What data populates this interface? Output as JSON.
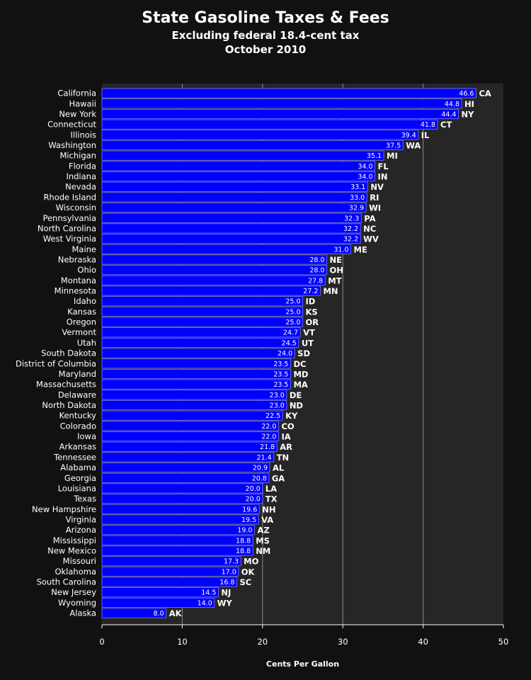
{
  "chart_data": {
    "type": "bar",
    "orientation": "horizontal",
    "title": "State Gasoline Taxes & Fees",
    "subtitles": [
      "Excluding federal 18.4-cent tax",
      "October 2010"
    ],
    "xlabel": "Cents Per Gallon",
    "ylabel": "",
    "xlim": [
      0,
      50
    ],
    "xticks": [
      "0",
      "10",
      "20",
      "30",
      "40",
      "50"
    ],
    "grid": "vertical",
    "colors": {
      "bar": "#0000ff",
      "bar_edge": "#7878ff",
      "plot_bg": "#262626",
      "page_bg": "#111111",
      "grid": "#8a8a8a"
    },
    "categories": [
      "California",
      "Hawaii",
      "New York",
      "Connecticut",
      "Illinois",
      "Washington",
      "Michigan",
      "Florida",
      "Indiana",
      "Nevada",
      "Rhode Island",
      "Wisconsin",
      "Pennsylvania",
      "North Carolina",
      "West Virginia",
      "Maine",
      "Nebraska",
      "Ohio",
      "Montana",
      "Minnesota",
      "Idaho",
      "Kansas",
      "Oregon",
      "Vermont",
      "Utah",
      "South Dakota",
      "District of Columbia",
      "Maryland",
      "Massachusetts",
      "Delaware",
      "North Dakota",
      "Kentucky",
      "Colorado",
      "Iowa",
      "Arkansas",
      "Tennessee",
      "Alabama",
      "Georgia",
      "Louisiana",
      "Texas",
      "New Hampshire",
      "Virginia",
      "Arizona",
      "Mississippi",
      "New Mexico",
      "Missouri",
      "Oklahoma",
      "South Carolina",
      "New Jersey",
      "Wyoming",
      "Alaska"
    ],
    "abbreviations": [
      "CA",
      "HI",
      "NY",
      "CT",
      "IL",
      "WA",
      "MI",
      "FL",
      "IN",
      "NV",
      "RI",
      "WI",
      "PA",
      "NC",
      "WV",
      "ME",
      "NE",
      "OH",
      "MT",
      "MN",
      "ID",
      "KS",
      "OR",
      "VT",
      "UT",
      "SD",
      "DC",
      "MD",
      "MA",
      "DE",
      "ND",
      "KY",
      "CO",
      "IA",
      "AR",
      "TN",
      "AL",
      "GA",
      "LA",
      "TX",
      "NH",
      "VA",
      "AZ",
      "MS",
      "NM",
      "MO",
      "OK",
      "SC",
      "NJ",
      "WY",
      "AK"
    ],
    "values": [
      46.6,
      44.8,
      44.4,
      41.8,
      39.4,
      37.5,
      35.1,
      34.0,
      34.0,
      33.1,
      33.0,
      32.9,
      32.3,
      32.2,
      32.2,
      31.0,
      28.0,
      28.0,
      27.8,
      27.2,
      25.0,
      25.0,
      25.0,
      24.7,
      24.5,
      24.0,
      23.5,
      23.5,
      23.5,
      23.0,
      23.0,
      22.5,
      22.0,
      22.0,
      21.8,
      21.4,
      20.9,
      20.8,
      20.0,
      20.0,
      19.6,
      19.5,
      19.0,
      18.8,
      18.8,
      17.3,
      17.0,
      16.8,
      14.5,
      14.0,
      8.0
    ],
    "value_labels": [
      "46.6",
      "44.8",
      "44.4",
      "41.8",
      "39.4",
      "37.5",
      "35.1",
      "34.0",
      "34.0",
      "33.1",
      "33.0",
      "32.9",
      "32.3",
      "32.2",
      "32.2",
      "31.0",
      "28.0",
      "28.0",
      "27.8",
      "27.2",
      "25.0",
      "25.0",
      "25.0",
      "24.7",
      "24.5",
      "24.0",
      "23.5",
      "23.5",
      "23.5",
      "23.0",
      "23.0",
      "22.5",
      "22.0",
      "22.0",
      "21.8",
      "21.4",
      "20.9",
      "20.8",
      "20.0",
      "20.0",
      "19.6",
      "19.5",
      "19.0",
      "18.8",
      "18.8",
      "17.3",
      "17.0",
      "16.8",
      "14.5",
      "14.0",
      "8.0"
    ]
  }
}
